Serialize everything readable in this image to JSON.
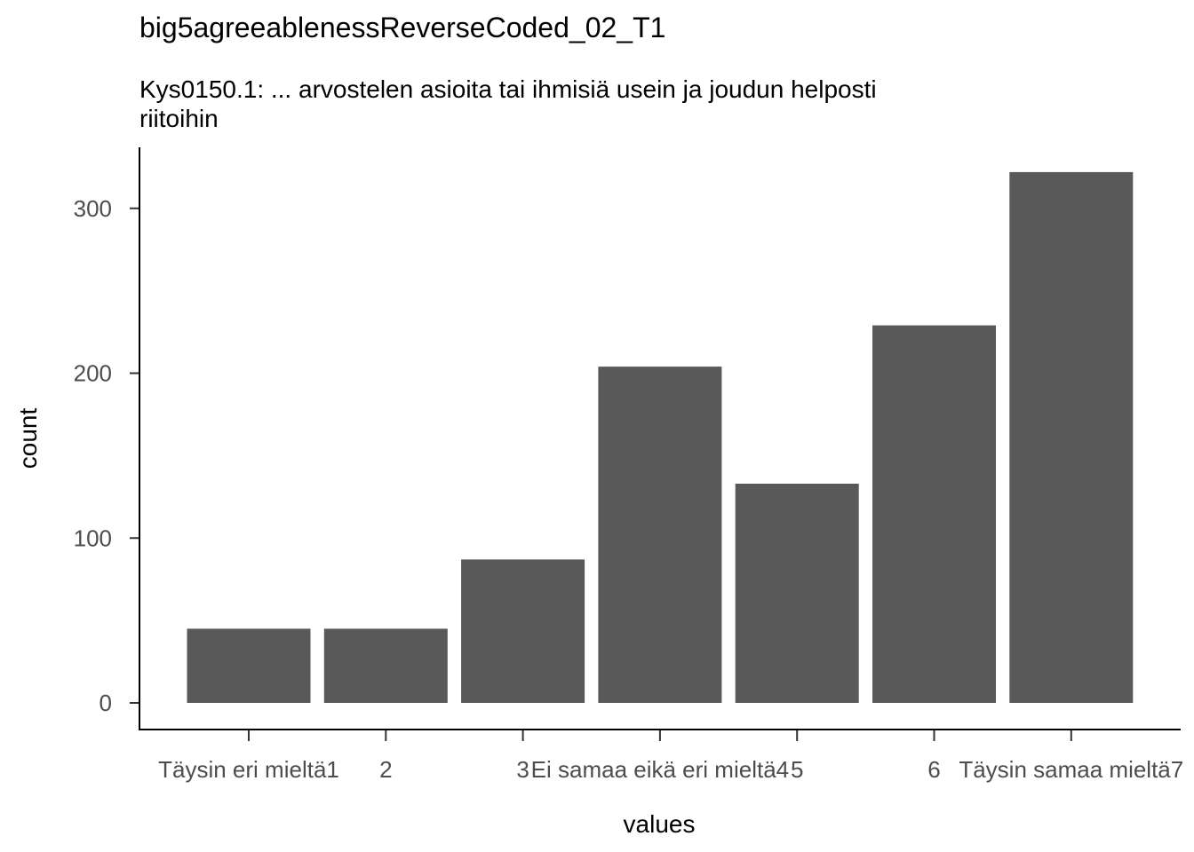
{
  "chart_data": {
    "type": "bar",
    "title": "big5agreeablenessReverseCoded_02_T1",
    "subtitle_lines": [
      "Kys0150.1: ... arvostelen asioita tai ihmisiä usein ja joudun helposti",
      "riitoihin"
    ],
    "xlabel": "values",
    "ylabel": "count",
    "categories": [
      "1",
      "2",
      "3",
      "4",
      "5",
      "6",
      "7"
    ],
    "value_labels": [
      "Täysin eri mieltä",
      "",
      "",
      "Ei samaa eikä eri mieltä",
      "",
      "",
      "Täysin samaa mieltä"
    ],
    "values": [
      45,
      45,
      87,
      204,
      133,
      229,
      322
    ],
    "ylim": [
      0,
      335
    ],
    "yticks": [
      0,
      100,
      200,
      300
    ],
    "bar_color": "#595959",
    "grid": false
  }
}
